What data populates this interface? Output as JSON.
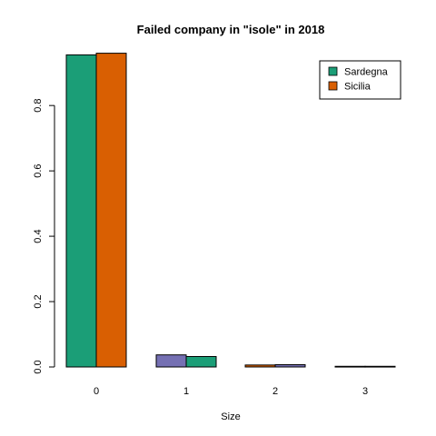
{
  "chart_data": {
    "type": "bar",
    "title": "Failed company in \"isole\" in 2018",
    "xlabel": "Size",
    "ylabel": "",
    "categories": [
      "0",
      "1",
      "2",
      "3"
    ],
    "ylim": [
      0,
      0.97
    ],
    "y_ticks": [
      0.0,
      0.2,
      0.4,
      0.6,
      0.8
    ],
    "y_tick_labels": [
      "0.0",
      "0.2",
      "0.4",
      "0.6",
      "0.8"
    ],
    "series": [
      {
        "name": "Sardegna",
        "values": [
          0.955,
          0.037,
          0.006,
          0.002
        ]
      },
      {
        "name": "Sicilia",
        "values": [
          0.96,
          0.032,
          0.007,
          0.002
        ]
      }
    ],
    "bar_colors": [
      [
        "#1B9E77",
        "#D95F02"
      ],
      [
        "#7570B3",
        "#1B9E77"
      ],
      [
        "#D95F02",
        "#7570B3"
      ],
      [
        "#1B9E77",
        "#D95F02"
      ]
    ],
    "legend": {
      "position": "top-right",
      "entries": [
        {
          "label": "Sardegna",
          "color": "#1B9E77"
        },
        {
          "label": "Sicilia",
          "color": "#D95F02"
        }
      ]
    },
    "grid": false
  }
}
